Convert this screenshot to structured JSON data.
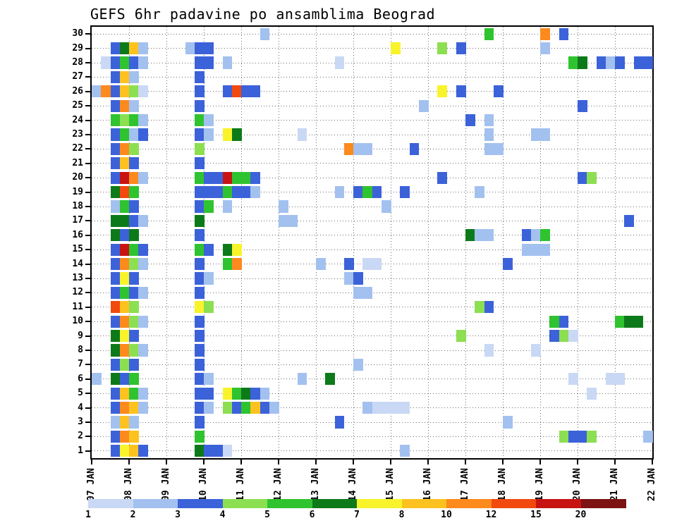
{
  "title": "GEFS 6hr padavine po ansamblima Beograd",
  "chart_data": {
    "type": "heatmap",
    "title": "GEFS 6hr padavine po ansamblima Beograd",
    "x_axis": {
      "tick_labels": [
        "07 JAN",
        "08 JAN",
        "09 JAN",
        "10 JAN",
        "11 JAN",
        "12 JAN",
        "13 JAN",
        "14 JAN",
        "15 JAN",
        "16 JAN",
        "17 JAN",
        "18 JAN",
        "19 JAN",
        "20 JAN",
        "21 JAN",
        "22 JAN"
      ],
      "step_hours": 6,
      "total_steps": 60
    },
    "y_axis": {
      "tick_labels": [
        "30",
        "29",
        "28",
        "27",
        "26",
        "25",
        "24",
        "23",
        "22",
        "21",
        "20",
        "19",
        "18",
        "17",
        "16",
        "15",
        "14",
        "13",
        "12",
        "11",
        "10",
        "9",
        "8",
        "7",
        "6",
        "5",
        "4",
        "3",
        "2",
        "1"
      ]
    },
    "legend": {
      "position": "bottom",
      "thresholds": [
        1,
        2,
        3,
        4,
        5,
        6,
        7,
        8,
        10,
        12,
        15,
        20
      ],
      "labels": [
        "1",
        "2",
        "3",
        "4",
        "5",
        "6",
        "7",
        "8",
        "10",
        "12",
        "15",
        "20"
      ],
      "colors": [
        "#c9d8f4",
        "#a3c1ef",
        "#3c62d9",
        "#8ddf52",
        "#2fc32f",
        "#0d7a1a",
        "#f8f32b",
        "#fdc220",
        "#fd8a1d",
        "#f1490e",
        "#c81313",
        "#7c1212"
      ]
    },
    "cells": [
      [
        18,
        30,
        2.5
      ],
      [
        42,
        30,
        5.5
      ],
      [
        48,
        30,
        11
      ],
      [
        50,
        30,
        3.5
      ],
      [
        2,
        29,
        3.5
      ],
      [
        3,
        29,
        6.5
      ],
      [
        4,
        29,
        9
      ],
      [
        5,
        29,
        2.5
      ],
      [
        10,
        29,
        2.5
      ],
      [
        11,
        29,
        3.5
      ],
      [
        12,
        29,
        3.5
      ],
      [
        32,
        29,
        7.5
      ],
      [
        37,
        29,
        4.5
      ],
      [
        39,
        29,
        3.5
      ],
      [
        48,
        29,
        2.5
      ],
      [
        1,
        28,
        1.5
      ],
      [
        2,
        28,
        3.5
      ],
      [
        3,
        28,
        5.5
      ],
      [
        4,
        28,
        3.5
      ],
      [
        5,
        28,
        2.5
      ],
      [
        11,
        28,
        3.5
      ],
      [
        12,
        28,
        3.5
      ],
      [
        14,
        28,
        2.5
      ],
      [
        26,
        28,
        1.5
      ],
      [
        51,
        28,
        5.5
      ],
      [
        52,
        28,
        6.5
      ],
      [
        54,
        28,
        3.5
      ],
      [
        55,
        28,
        2.5
      ],
      [
        56,
        28,
        3.5
      ],
      [
        58,
        28,
        3.5
      ],
      [
        59,
        28,
        3.5
      ],
      [
        2,
        27,
        3.5
      ],
      [
        3,
        27,
        9
      ],
      [
        4,
        27,
        2.5
      ],
      [
        11,
        27,
        3.5
      ],
      [
        0,
        26,
        2.5
      ],
      [
        1,
        26,
        11
      ],
      [
        2,
        26,
        3.5
      ],
      [
        3,
        26,
        9
      ],
      [
        4,
        26,
        4.5
      ],
      [
        5,
        26,
        1.5
      ],
      [
        11,
        26,
        3.5
      ],
      [
        14,
        26,
        3.5
      ],
      [
        15,
        26,
        13
      ],
      [
        16,
        26,
        3.5
      ],
      [
        17,
        26,
        3.5
      ],
      [
        37,
        26,
        7.5
      ],
      [
        39,
        26,
        3.5
      ],
      [
        43,
        26,
        3.5
      ],
      [
        2,
        25,
        3.5
      ],
      [
        3,
        25,
        11
      ],
      [
        4,
        25,
        2.5
      ],
      [
        11,
        25,
        3.5
      ],
      [
        35,
        25,
        2.5
      ],
      [
        52,
        25,
        3.5
      ],
      [
        2,
        24,
        5.5
      ],
      [
        3,
        24,
        4.5
      ],
      [
        4,
        24,
        5.5
      ],
      [
        5,
        24,
        2.5
      ],
      [
        11,
        24,
        5.5
      ],
      [
        12,
        24,
        2.5
      ],
      [
        40,
        24,
        3.5
      ],
      [
        42,
        24,
        2.5
      ],
      [
        2,
        23,
        3.5
      ],
      [
        3,
        23,
        5.5
      ],
      [
        4,
        23,
        2.5
      ],
      [
        5,
        23,
        3.5
      ],
      [
        11,
        23,
        3.5
      ],
      [
        12,
        23,
        2.5
      ],
      [
        14,
        23,
        7.5
      ],
      [
        15,
        23,
        6.5
      ],
      [
        22,
        23,
        1.5
      ],
      [
        42,
        23,
        2.5
      ],
      [
        47,
        23,
        2.5
      ],
      [
        48,
        23,
        2.5
      ],
      [
        2,
        22,
        3.5
      ],
      [
        3,
        22,
        11
      ],
      [
        4,
        22,
        4.5
      ],
      [
        11,
        22,
        4.5
      ],
      [
        27,
        22,
        11
      ],
      [
        28,
        22,
        2.5
      ],
      [
        29,
        22,
        2.5
      ],
      [
        34,
        22,
        3.5
      ],
      [
        42,
        22,
        2.5
      ],
      [
        43,
        22,
        2.5
      ],
      [
        2,
        21,
        3.5
      ],
      [
        3,
        21,
        9
      ],
      [
        4,
        21,
        3.5
      ],
      [
        11,
        21,
        3.5
      ],
      [
        2,
        20,
        3.5
      ],
      [
        3,
        20,
        17
      ],
      [
        4,
        20,
        11
      ],
      [
        5,
        20,
        2.5
      ],
      [
        11,
        20,
        5.5
      ],
      [
        12,
        20,
        3.5
      ],
      [
        13,
        20,
        3.5
      ],
      [
        14,
        20,
        17
      ],
      [
        15,
        20,
        5.5
      ],
      [
        16,
        20,
        5.5
      ],
      [
        17,
        20,
        3.5
      ],
      [
        37,
        20,
        3.5
      ],
      [
        52,
        20,
        3.5
      ],
      [
        53,
        20,
        4.5
      ],
      [
        2,
        19,
        6.5
      ],
      [
        3,
        19,
        13
      ],
      [
        4,
        19,
        5.5
      ],
      [
        11,
        19,
        3.5
      ],
      [
        12,
        19,
        3.5
      ],
      [
        13,
        19,
        3.5
      ],
      [
        14,
        19,
        5.5
      ],
      [
        15,
        19,
        3.5
      ],
      [
        16,
        19,
        3.5
      ],
      [
        17,
        19,
        2.5
      ],
      [
        26,
        19,
        2.5
      ],
      [
        28,
        19,
        3.5
      ],
      [
        29,
        19,
        5.5
      ],
      [
        30,
        19,
        3.5
      ],
      [
        33,
        19,
        3.5
      ],
      [
        41,
        19,
        2.5
      ],
      [
        2,
        18,
        2.5
      ],
      [
        3,
        18,
        5.5
      ],
      [
        4,
        18,
        3.5
      ],
      [
        11,
        18,
        3.5
      ],
      [
        12,
        18,
        5.5
      ],
      [
        14,
        18,
        2.5
      ],
      [
        20,
        18,
        2.5
      ],
      [
        31,
        18,
        2.5
      ],
      [
        2,
        17,
        6.5
      ],
      [
        3,
        17,
        6.5
      ],
      [
        4,
        17,
        3.5
      ],
      [
        5,
        17,
        2.5
      ],
      [
        11,
        17,
        6.5
      ],
      [
        20,
        17,
        2.5
      ],
      [
        21,
        17,
        2.5
      ],
      [
        57,
        17,
        3.5
      ],
      [
        2,
        16,
        6.5
      ],
      [
        3,
        16,
        3.5
      ],
      [
        4,
        16,
        6.5
      ],
      [
        11,
        16,
        3.5
      ],
      [
        40,
        16,
        6.5
      ],
      [
        41,
        16,
        2.5
      ],
      [
        42,
        16,
        2.5
      ],
      [
        46,
        16,
        3.5
      ],
      [
        47,
        16,
        2.5
      ],
      [
        48,
        16,
        5.5
      ],
      [
        2,
        15,
        3.5
      ],
      [
        3,
        15,
        17
      ],
      [
        4,
        15,
        5.5
      ],
      [
        5,
        15,
        3.5
      ],
      [
        11,
        15,
        5.5
      ],
      [
        12,
        15,
        3.5
      ],
      [
        14,
        15,
        6.5
      ],
      [
        15,
        15,
        7.5
      ],
      [
        46,
        15,
        2.5
      ],
      [
        47,
        15,
        2.5
      ],
      [
        48,
        15,
        2.5
      ],
      [
        2,
        14,
        3.5
      ],
      [
        3,
        14,
        11
      ],
      [
        4,
        14,
        4.5
      ],
      [
        5,
        14,
        2.5
      ],
      [
        11,
        14,
        3.5
      ],
      [
        14,
        14,
        5.5
      ],
      [
        15,
        14,
        11
      ],
      [
        24,
        14,
        2.5
      ],
      [
        27,
        14,
        3.5
      ],
      [
        29,
        14,
        1.5
      ],
      [
        30,
        14,
        1.5
      ],
      [
        44,
        14,
        3.5
      ],
      [
        2,
        13,
        3.5
      ],
      [
        3,
        13,
        7.5
      ],
      [
        4,
        13,
        3.5
      ],
      [
        11,
        13,
        3.5
      ],
      [
        12,
        13,
        2.5
      ],
      [
        27,
        13,
        2.5
      ],
      [
        28,
        13,
        3.5
      ],
      [
        2,
        12,
        3.5
      ],
      [
        3,
        12,
        5.5
      ],
      [
        4,
        12,
        3.5
      ],
      [
        5,
        12,
        2.5
      ],
      [
        11,
        12,
        3.5
      ],
      [
        28,
        12,
        2.5
      ],
      [
        29,
        12,
        2.5
      ],
      [
        2,
        11,
        13
      ],
      [
        3,
        11,
        9
      ],
      [
        4,
        11,
        4.5
      ],
      [
        11,
        11,
        7.5
      ],
      [
        12,
        11,
        4.5
      ],
      [
        41,
        11,
        4.5
      ],
      [
        42,
        11,
        3.5
      ],
      [
        2,
        10,
        3.5
      ],
      [
        3,
        10,
        11
      ],
      [
        4,
        10,
        4.5
      ],
      [
        5,
        10,
        2.5
      ],
      [
        11,
        10,
        3.5
      ],
      [
        49,
        10,
        5.5
      ],
      [
        50,
        10,
        3.5
      ],
      [
        56,
        10,
        5.5
      ],
      [
        57,
        10,
        6.5
      ],
      [
        58,
        10,
        6.5
      ],
      [
        2,
        9,
        6.5
      ],
      [
        3,
        9,
        7.5
      ],
      [
        4,
        9,
        3.5
      ],
      [
        11,
        9,
        3.5
      ],
      [
        39,
        9,
        4.5
      ],
      [
        49,
        9,
        3.5
      ],
      [
        50,
        9,
        4.5
      ],
      [
        51,
        9,
        1.5
      ],
      [
        2,
        8,
        6.5
      ],
      [
        3,
        8,
        11
      ],
      [
        4,
        8,
        4.5
      ],
      [
        5,
        8,
        2.5
      ],
      [
        11,
        8,
        3.5
      ],
      [
        42,
        8,
        1.5
      ],
      [
        47,
        8,
        1.5
      ],
      [
        2,
        7,
        3.5
      ],
      [
        3,
        7,
        4.5
      ],
      [
        4,
        7,
        3.5
      ],
      [
        11,
        7,
        3.5
      ],
      [
        28,
        7,
        2.5
      ],
      [
        0,
        6,
        2.5
      ],
      [
        2,
        6,
        6.5
      ],
      [
        3,
        6,
        3.5
      ],
      [
        4,
        6,
        5.5
      ],
      [
        11,
        6,
        3.5
      ],
      [
        12,
        6,
        2.5
      ],
      [
        22,
        6,
        2.5
      ],
      [
        25,
        6,
        6.5
      ],
      [
        51,
        6,
        1.5
      ],
      [
        55,
        6,
        1.5
      ],
      [
        56,
        6,
        1.5
      ],
      [
        2,
        5,
        3.5
      ],
      [
        3,
        5,
        9
      ],
      [
        4,
        5,
        5.5
      ],
      [
        5,
        5,
        2.5
      ],
      [
        11,
        5,
        3.5
      ],
      [
        12,
        5,
        3.5
      ],
      [
        14,
        5,
        7.5
      ],
      [
        15,
        5,
        5.5
      ],
      [
        16,
        5,
        6.5
      ],
      [
        17,
        5,
        3.5
      ],
      [
        18,
        5,
        2.5
      ],
      [
        53,
        5,
        1.5
      ],
      [
        2,
        4,
        3.5
      ],
      [
        3,
        4,
        11
      ],
      [
        4,
        4,
        9
      ],
      [
        5,
        4,
        2.5
      ],
      [
        11,
        4,
        3.5
      ],
      [
        12,
        4,
        2.5
      ],
      [
        14,
        4,
        4.5
      ],
      [
        15,
        4,
        3.5
      ],
      [
        16,
        4,
        5.5
      ],
      [
        17,
        4,
        9
      ],
      [
        18,
        4,
        3.5
      ],
      [
        19,
        4,
        2.5
      ],
      [
        29,
        4,
        2.5
      ],
      [
        30,
        4,
        1.5
      ],
      [
        31,
        4,
        1.5
      ],
      [
        32,
        4,
        1.5
      ],
      [
        33,
        4,
        1.5
      ],
      [
        2,
        3,
        2.5
      ],
      [
        3,
        3,
        9
      ],
      [
        4,
        3,
        2.5
      ],
      [
        11,
        3,
        3.5
      ],
      [
        26,
        3,
        3.5
      ],
      [
        44,
        3,
        2.5
      ],
      [
        2,
        2,
        3.5
      ],
      [
        3,
        2,
        11
      ],
      [
        4,
        2,
        9
      ],
      [
        11,
        2,
        5.5
      ],
      [
        50,
        2,
        4.5
      ],
      [
        51,
        2,
        3.5
      ],
      [
        52,
        2,
        3.5
      ],
      [
        53,
        2,
        4.5
      ],
      [
        59,
        2,
        2.5
      ],
      [
        2,
        1,
        3.5
      ],
      [
        3,
        1,
        7.5
      ],
      [
        4,
        1,
        9
      ],
      [
        5,
        1,
        3.5
      ],
      [
        11,
        1,
        6.5
      ],
      [
        12,
        1,
        3.5
      ],
      [
        13,
        1,
        3.5
      ],
      [
        14,
        1,
        1.5
      ],
      [
        33,
        1,
        2.5
      ]
    ]
  }
}
